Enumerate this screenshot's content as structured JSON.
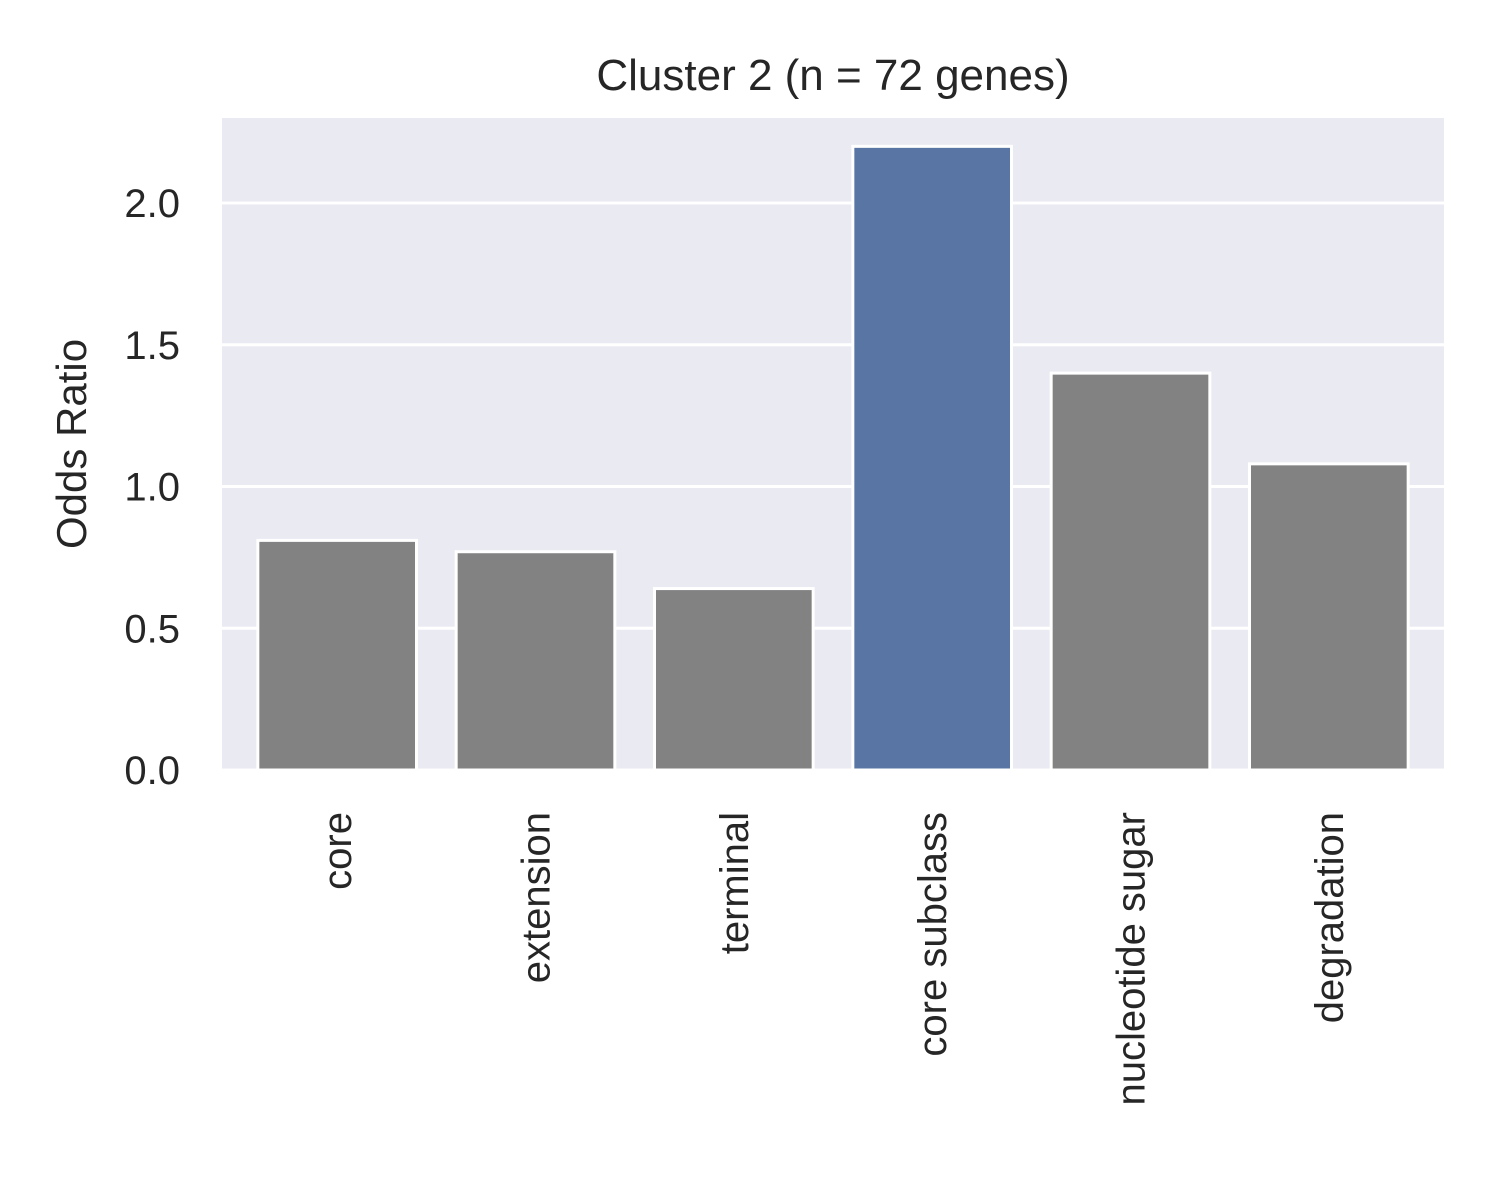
{
  "chart_data": {
    "type": "bar",
    "title": "Cluster 2 (n = 72 genes)",
    "xlabel": "",
    "ylabel": "Odds Ratio",
    "categories": [
      "core",
      "extension",
      "terminal",
      "core subclass",
      "nucleotide sugar",
      "degradation"
    ],
    "values": [
      0.81,
      0.77,
      0.64,
      2.2,
      1.4,
      1.08
    ],
    "colors": [
      "#828282",
      "#828282",
      "#828282",
      "#5975a4",
      "#828282",
      "#828282"
    ],
    "ylim": [
      0,
      2.3
    ],
    "yticks": [
      0.0,
      0.5,
      1.0,
      1.5,
      2.0
    ],
    "ytick_labels": [
      "0.0",
      "0.5",
      "1.0",
      "1.5",
      "2.0"
    ],
    "grid": true,
    "background": "#eaeaf2",
    "grid_color": "#ffffff"
  }
}
